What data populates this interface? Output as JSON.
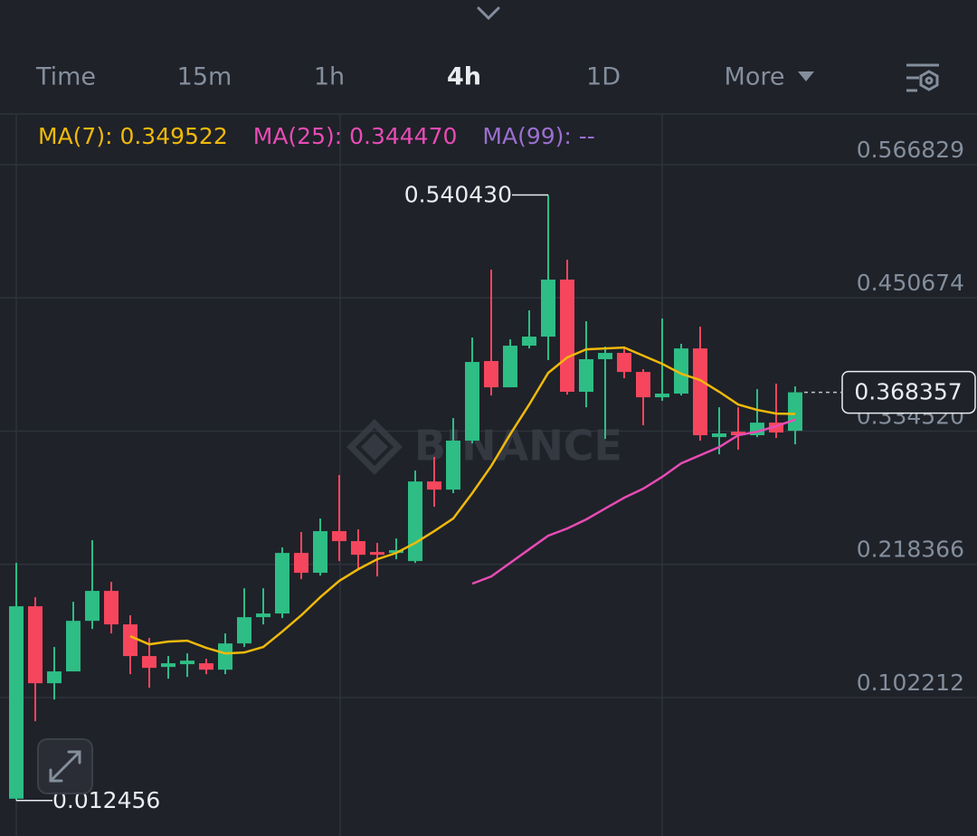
{
  "tabs": [
    "Time",
    "15m",
    "1h",
    "4h",
    "1D",
    "More"
  ],
  "active_tab": "4h",
  "chart_data": {
    "type": "candlestick",
    "watermark": "BINANCE",
    "up_color": "#2ebd85",
    "down_color": "#f6465d",
    "open": [
      0.014,
      0.1818,
      0.1147,
      0.125,
      0.1691,
      0.1952,
      0.166,
      0.1384,
      0.1289,
      0.1313,
      0.1321,
      0.1265,
      0.1494,
      0.1723,
      0.1755,
      0.2283,
      0.211,
      0.2473,
      0.2386,
      0.2291,
      0.2283,
      0.2212,
      0.2906,
      0.2835,
      0.3262,
      0.3956,
      0.3727,
      0.409,
      0.4169,
      0.4666,
      0.3688,
      0.3972,
      0.4027,
      0.3861,
      0.364,
      0.3672,
      0.4066,
      0.3293,
      0.334,
      0.3309,
      0.3419,
      0.3348
    ],
    "high": [
      0.2196,
      0.1897,
      0.1463,
      0.1857,
      0.2394,
      0.2031,
      0.1739,
      0.1542,
      0.1384,
      0.1407,
      0.136,
      0.1581,
      0.1975,
      0.1975,
      0.2331,
      0.2465,
      0.2583,
      0.2962,
      0.2488,
      0.237,
      0.2409,
      0.3001,
      0.312,
      0.3459,
      0.4161,
      0.4753,
      0.4145,
      0.4398,
      0.54043,
      0.484,
      0.4303,
      0.4082,
      0.4082,
      0.3885,
      0.4327,
      0.4106,
      0.4256,
      0.3553,
      0.3553,
      0.3711,
      0.3759,
      0.3735
    ],
    "low": [
      0.012456,
      0.0816,
      0.1005,
      0.125,
      0.162,
      0.1581,
      0.1226,
      0.1108,
      0.1186,
      0.1202,
      0.1226,
      0.1226,
      0.1463,
      0.166,
      0.1715,
      0.2054,
      0.2086,
      0.2212,
      0.2133,
      0.2078,
      0.2228,
      0.2196,
      0.2686,
      0.2804,
      0.3238,
      0.3656,
      0.3727,
      0.4066,
      0.3964,
      0.3664,
      0.3553,
      0.3277,
      0.3806,
      0.3396,
      0.3609,
      0.3656,
      0.3262,
      0.3143,
      0.3183,
      0.3293,
      0.3285,
      0.323
    ],
    "close": [
      0.1818,
      0.1147,
      0.125,
      0.1691,
      0.1952,
      0.166,
      0.1384,
      0.1281,
      0.1321,
      0.1344,
      0.1265,
      0.1494,
      0.1723,
      0.1755,
      0.2283,
      0.211,
      0.2473,
      0.2386,
      0.2267,
      0.2267,
      0.2307,
      0.2906,
      0.2835,
      0.3262,
      0.3948,
      0.3727,
      0.409,
      0.4169,
      0.4666,
      0.3688,
      0.3972,
      0.4027,
      0.3861,
      0.364,
      0.3672,
      0.4066,
      0.3309,
      0.3325,
      0.3309,
      0.3419,
      0.3333,
      0.368357
    ],
    "series": [
      {
        "name": "MA(7): 0.349522",
        "color": "#f0b90b",
        "values": [
          null,
          null,
          null,
          null,
          null,
          null,
          0.1557,
          0.1486,
          0.151,
          0.1518,
          0.1455,
          0.1407,
          0.1415,
          0.1463,
          0.1597,
          0.1739,
          0.1897,
          0.2039,
          0.2141,
          0.2228,
          0.2283,
          0.237,
          0.2473,
          0.2583,
          0.2804,
          0.3041,
          0.3317,
          0.3577,
          0.3853,
          0.3987,
          0.4058,
          0.4066,
          0.4074,
          0.4003,
          0.3932,
          0.3845,
          0.379,
          0.3688,
          0.3577,
          0.353,
          0.3498,
          0.349522
        ]
      },
      {
        "name": "MA(25): 0.344470",
        "color": "#e84bb5",
        "values": [
          null,
          null,
          null,
          null,
          null,
          null,
          null,
          null,
          null,
          null,
          null,
          null,
          null,
          null,
          null,
          null,
          null,
          null,
          null,
          null,
          null,
          null,
          null,
          null,
          0.2015,
          0.2078,
          0.2196,
          0.2315,
          0.2433,
          0.2496,
          0.2575,
          0.267,
          0.2764,
          0.2843,
          0.2946,
          0.3064,
          0.3135,
          0.3206,
          0.3309,
          0.334,
          0.3388,
          0.34447
        ]
      },
      {
        "name": "MA(99): --",
        "color": "#9b6fd0",
        "values": [
          null,
          null,
          null,
          null,
          null,
          null,
          null,
          null,
          null,
          null,
          null,
          null,
          null,
          null,
          null,
          null,
          null,
          null,
          null,
          null,
          null,
          null,
          null,
          null,
          null,
          null,
          null,
          null,
          null,
          null,
          null,
          null,
          null,
          null,
          null,
          null,
          null,
          null,
          null,
          null,
          null,
          null
        ]
      }
    ],
    "ylim": [
      -0.0185,
      0.6102
    ],
    "yticks": [
      0.566829,
      0.450674,
      0.33452,
      0.218366,
      0.102212
    ],
    "ytick_labels": [
      "0.566829",
      "0.450674",
      "0.334520",
      "0.218366",
      "0.102212"
    ],
    "high_label": "0.540430",
    "low_label": "0.012456",
    "last_price_label": "0.368357",
    "grid": true
  }
}
